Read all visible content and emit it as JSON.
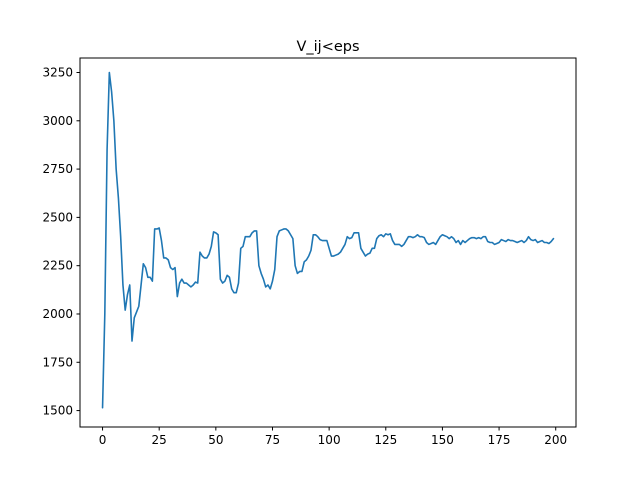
{
  "chart_data": {
    "type": "line",
    "title": "V_ij<eps",
    "xlabel": "",
    "ylabel": "",
    "xlim": [
      -9.95,
      208.95
    ],
    "ylim": [
      1415,
      3325
    ],
    "xticks": [
      0,
      25,
      50,
      75,
      100,
      125,
      150,
      175,
      200
    ],
    "yticks": [
      1500,
      1750,
      2000,
      2250,
      2500,
      2750,
      3000,
      3250
    ],
    "grid": false,
    "color": "#1f77b4",
    "series": [
      {
        "x": [
          0,
          1,
          2,
          3,
          4,
          5,
          6,
          7,
          8,
          9,
          10,
          11,
          12,
          13,
          14,
          15,
          16,
          17,
          18,
          19,
          20,
          21,
          22,
          23,
          24,
          25,
          26,
          27,
          28,
          29,
          30,
          31,
          32,
          33,
          34,
          35,
          36,
          37,
          38,
          39,
          40,
          41,
          42,
          43,
          44,
          45,
          46,
          47,
          48,
          49,
          50,
          51,
          52,
          53,
          54,
          55,
          56,
          57,
          58,
          59,
          60,
          61,
          62,
          63,
          64,
          65,
          66,
          67,
          68,
          69,
          70,
          71,
          72,
          73,
          74,
          75,
          76,
          77,
          78,
          79,
          80,
          81,
          82,
          83,
          84,
          85,
          86,
          87,
          88,
          89,
          90,
          91,
          92,
          93,
          94,
          95,
          96,
          97,
          98,
          99,
          100,
          101,
          102,
          103,
          104,
          105,
          106,
          107,
          108,
          109,
          110,
          111,
          112,
          113,
          114,
          115,
          116,
          117,
          118,
          119,
          120,
          121,
          122,
          123,
          124,
          125,
          126,
          127,
          128,
          129,
          130,
          131,
          132,
          133,
          134,
          135,
          136,
          137,
          138,
          139,
          140,
          141,
          142,
          143,
          144,
          145,
          146,
          147,
          148,
          149,
          150,
          151,
          152,
          153,
          154,
          155,
          156,
          157,
          158,
          159,
          160,
          161,
          162,
          163,
          164,
          165,
          166,
          167,
          168,
          169,
          170,
          171,
          172,
          173,
          174,
          175,
          176,
          177,
          178,
          179,
          180,
          181,
          182,
          183,
          184,
          185,
          186,
          187,
          188,
          189,
          190,
          191,
          192,
          193,
          194,
          195,
          196,
          197,
          198,
          199
        ],
        "y": [
          1515,
          2000,
          2850,
          3250,
          3150,
          3000,
          2750,
          2600,
          2400,
          2150,
          2020,
          2100,
          2150,
          1860,
          1980,
          2010,
          2040,
          2150,
          2260,
          2240,
          2190,
          2190,
          2170,
          2440,
          2440,
          2445,
          2380,
          2290,
          2290,
          2280,
          2240,
          2230,
          2240,
          2090,
          2160,
          2180,
          2160,
          2160,
          2150,
          2140,
          2150,
          2165,
          2160,
          2320,
          2300,
          2290,
          2290,
          2310,
          2350,
          2425,
          2420,
          2410,
          2180,
          2160,
          2170,
          2200,
          2190,
          2130,
          2110,
          2110,
          2160,
          2340,
          2350,
          2400,
          2400,
          2400,
          2420,
          2430,
          2430,
          2250,
          2210,
          2180,
          2140,
          2150,
          2130,
          2170,
          2230,
          2400,
          2430,
          2435,
          2440,
          2440,
          2430,
          2410,
          2390,
          2250,
          2210,
          2220,
          2220,
          2270,
          2280,
          2300,
          2330,
          2410,
          2410,
          2400,
          2385,
          2380,
          2380,
          2380,
          2340,
          2300,
          2300,
          2305,
          2310,
          2320,
          2340,
          2360,
          2400,
          2390,
          2395,
          2420,
          2420,
          2420,
          2340,
          2320,
          2300,
          2310,
          2315,
          2340,
          2340,
          2390,
          2405,
          2410,
          2400,
          2415,
          2410,
          2415,
          2380,
          2360,
          2360,
          2360,
          2350,
          2360,
          2380,
          2400,
          2400,
          2395,
          2400,
          2410,
          2400,
          2400,
          2395,
          2370,
          2360,
          2365,
          2370,
          2360,
          2380,
          2400,
          2410,
          2405,
          2400,
          2390,
          2400,
          2390,
          2370,
          2380,
          2360,
          2380,
          2370,
          2380,
          2390,
          2395,
          2395,
          2390,
          2395,
          2390,
          2400,
          2400,
          2375,
          2370,
          2370,
          2360,
          2365,
          2370,
          2385,
          2380,
          2375,
          2385,
          2380,
          2380,
          2375,
          2370,
          2375,
          2380,
          2370,
          2380,
          2400,
          2385,
          2380,
          2385,
          2370,
          2375,
          2380,
          2370,
          2370,
          2365,
          2375,
          2390
        ]
      }
    ]
  }
}
